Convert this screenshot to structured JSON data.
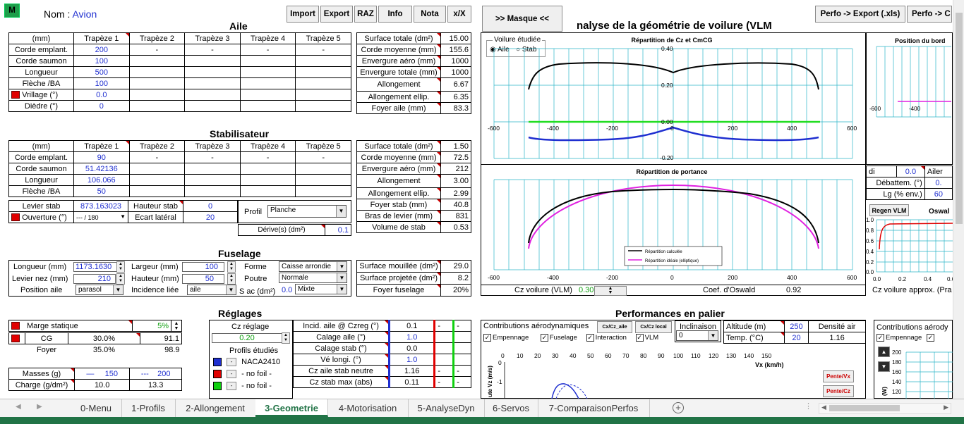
{
  "header": {
    "m_button": "M",
    "nom_label": "Nom :",
    "nom_value": "Avion",
    "buttons": [
      "Import",
      "Export",
      "RAZ",
      "Info",
      "Nota",
      "x/X"
    ],
    "masque_button": ">>     Masque     <<",
    "analysis_title": "nalyse de la géométrie de voilure (VLM",
    "perfo_export": "Perfo -> Export (.xls)",
    "perfo_c": "Perfo -> C"
  },
  "aile": {
    "title": "Aile",
    "headers": [
      "(mm)",
      "Trapèze 1",
      "Trapèze 2",
      "Trapèze 3",
      "Trapèze 4",
      "Trapèze 5"
    ],
    "rows": [
      {
        "label": "Corde emplant.",
        "values": [
          "200",
          "-",
          "-",
          "-",
          "-"
        ]
      },
      {
        "label": "Corde saumon",
        "values": [
          "100",
          "",
          "",
          "",
          ""
        ]
      },
      {
        "label": "Longueur",
        "values": [
          "500",
          "",
          "",
          "",
          ""
        ]
      },
      {
        "label": "Flèche /BA",
        "values": [
          "100",
          "",
          "",
          "",
          ""
        ]
      },
      {
        "label": "Vrillage (°)",
        "values": [
          "0.0",
          "",
          "",
          "",
          ""
        ]
      },
      {
        "label": "Dièdre (°)",
        "values": [
          "0",
          "",
          "",
          "",
          ""
        ]
      }
    ],
    "summary": [
      {
        "label": "Surface totale (dm²)",
        "value": "15.00"
      },
      {
        "label": "Corde moyenne (mm)",
        "value": "155.6"
      },
      {
        "label": "Envergure aéro (mm)",
        "value": "1000"
      },
      {
        "label": "Envergure totale (mm)",
        "value": "1000"
      },
      {
        "label": "Allongement",
        "value": "6.67"
      },
      {
        "label": "Allongement ellip.",
        "value": "6.35"
      },
      {
        "label": "Foyer aile (mm)",
        "value": "83.3"
      }
    ]
  },
  "stab": {
    "title": "Stabilisateur",
    "headers": [
      "(mm)",
      "Trapèze 1",
      "Trapèze 2",
      "Trapèze 3",
      "Trapèze 4",
      "Trapèze 5"
    ],
    "rows": [
      {
        "label": "Corde emplant.",
        "values": [
          "90",
          "-",
          "-",
          "-",
          "-"
        ]
      },
      {
        "label": "Corde saumon",
        "values": [
          "51.42136",
          "",
          "",
          "",
          ""
        ]
      },
      {
        "label": "Longueur",
        "values": [
          "106.066",
          "",
          "",
          "",
          ""
        ]
      },
      {
        "label": "Flèche /BA",
        "values": [
          "50",
          "",
          "",
          "",
          ""
        ]
      }
    ],
    "levier_label": "Levier stab",
    "levier_value": "873.163023",
    "hauteur_label": "Hauteur stab",
    "hauteur_value": "0",
    "ouverture_label": "Ouverture (°)",
    "ouverture_value": "--- / 180",
    "ecart_label": "Ecart latéral",
    "ecart_value": "20",
    "profil_label": "Profil",
    "profil_value": "Planche",
    "derive_label": "Dérive(s) (dm²)",
    "derive_value": "0.1",
    "summary": [
      {
        "label": "Surface totale (dm²)",
        "value": "1.50"
      },
      {
        "label": "Corde moyenne (mm)",
        "value": "72.5"
      },
      {
        "label": "Envergure aéro (mm)",
        "value": "212"
      },
      {
        "label": "Allongement",
        "value": "3.00"
      },
      {
        "label": "Allongement ellip.",
        "value": "2.99"
      },
      {
        "label": "Foyer stab (mm)",
        "value": "40.8"
      },
      {
        "label": "Bras de levier (mm)",
        "value": "831"
      },
      {
        "label": "Volume de stab",
        "value": "0.53"
      }
    ]
  },
  "fuselage": {
    "title": "Fuselage",
    "longueur_label": "Longueur (mm)",
    "longueur_value": "1173.1630",
    "largeur_label": "Largeur (mm)",
    "largeur_value": "100",
    "forme_label": "Forme",
    "forme_value": "Caisse arrondie",
    "levier_nez_label": "Levier nez (mm)",
    "levier_nez_value": "210",
    "hauteur_label": "Hauteur (mm)",
    "hauteur_value": "50",
    "poutre_label": "Poutre",
    "poutre_value": "Normale",
    "position_aile_label": "Position aile",
    "position_aile_value": "parasol",
    "incidence_label": "Incidence liée",
    "incidence_value": "aile",
    "sac_label": "S ac (dm²)",
    "sac_value": "0.0",
    "sac_mode": "Mixte",
    "summary": [
      {
        "label": "Surface mouillée (dm²)",
        "value": "29.0"
      },
      {
        "label": "Surface projetée (dm²)",
        "value": "8.2"
      },
      {
        "label": "Foyer fuselage",
        "value": "20%"
      }
    ]
  },
  "reglages": {
    "title": "Réglages",
    "marge_label": "Marge statique",
    "marge_value": "5%",
    "cg_label": "CG",
    "cg_pct": "30.0%",
    "cg_value": "91.1",
    "foyer_label": "Foyer",
    "foyer_pct": "35.0%",
    "foyer_value": "98.9",
    "masses_label": "Masses (g)",
    "masses_v1": "150",
    "masses_v2": "200",
    "charge_label": "Charge (g/dm²)",
    "charge_v1": "10.0",
    "charge_v2": "13.3",
    "cz_reglage_label": "Cz réglage",
    "cz_reglage_value": "0.20",
    "profils_label": "Profils étudiés",
    "profils": [
      "NACA2410",
      "- no foil -",
      "- no foil -"
    ],
    "params": [
      {
        "label": "Incid. aile @ Czreg (°)",
        "v": "0.1"
      },
      {
        "label": "Calage aile (°)",
        "v": "1.0"
      },
      {
        "label": "Calage stab (°)",
        "v": "0.0"
      },
      {
        "label": "Vé longi. (°)",
        "v": "1.0"
      },
      {
        "label": "Cz aile stab neutre",
        "v": "1.16"
      },
      {
        "label": "Cz stab max (abs)",
        "v": "0.11"
      }
    ]
  },
  "vlm": {
    "voilure_label": "Voilure étudiée",
    "aile_opt": "Aile",
    "stab_opt": "Stab",
    "chart1_title": "Répartition de Cz et CmCG",
    "chart2_title": "Répartition de portance",
    "legend_calc": "Répartition calculée",
    "legend_ideal": "Répartition idéale (elliptique)",
    "cz_voilure_label": "Cz voilure (VLM)",
    "cz_voilure_value": "0.30",
    "oswald_label": "Coef. d'Oswald",
    "oswald_value": "0.92",
    "cz_approx_label": "Cz voilure approx. (Pra",
    "x_ticks": [
      "-600",
      "-400",
      "-200",
      "0",
      "200",
      "400",
      "600"
    ],
    "y_ticks_1": [
      "0.40",
      "0.20",
      "0.00",
      "-0.20"
    ],
    "right_title": "Position du bord",
    "right_ticks": [
      "-600",
      "-400"
    ],
    "di_label": "di",
    "di_value": "0.0",
    "ailer_label": "Ailer",
    "debattem_label": "Débattem. (°)",
    "debattem_value": "0.",
    "lg_label": "Lg (% env.)",
    "lg_value": "60",
    "regen_label": "Regen VLM",
    "oswald_small": "Oswal",
    "osw_y": [
      "1.0",
      "0.8",
      "0.6",
      "0.4",
      "0.2",
      "0.0"
    ],
    "osw_x": [
      "0.0",
      "0.2",
      "0.4",
      "0.6"
    ]
  },
  "perf": {
    "title": "Performances en palier",
    "contrib_label": "Contributions aérodynamiques",
    "cx_aile": "Cx/Cz_aile",
    "cx_local": "Cx/Cz local",
    "chk_empennage": "Empennage",
    "chk_fuselage": "Fuselage",
    "chk_interaction": "Interaction",
    "chk_vlm": "VLM",
    "inclinaison_label": "Inclinaison",
    "inclinaison_value": "0",
    "altitude_label": "Altitude (m)",
    "altitude_value": "250",
    "densite_label": "Densité air",
    "densite_value": "1.16",
    "temp_label": "Temp. (°C)",
    "temp_value": "20",
    "vx_ticks": [
      "0",
      "10",
      "20",
      "30",
      "40",
      "50",
      "60",
      "70",
      "80",
      "90",
      "100",
      "110",
      "120",
      "130",
      "140",
      "150"
    ],
    "vx_label": "Vx (km/h)",
    "vz_label": "ute Vz (m/s)",
    "vz_ticks": [
      "0",
      "-1"
    ],
    "pente_vx": "Pente/Vx",
    "pente_cz": "Pente/Cz",
    "contrib2_label": "Contributions aérody",
    "right_y": [
      "200",
      "180",
      "160",
      "140",
      "120"
    ],
    "w_label": "(W)"
  },
  "tabs": [
    "0-Menu",
    "1-Profils",
    "2-Allongement",
    "3-Geometrie",
    "4-Motorisation",
    "5-AnalyseDyn",
    "6-Servos",
    "7-ComparaisonPerfos"
  ],
  "colors": {
    "accent": "#217346",
    "blue": "#1f2fd0",
    "red": "#e00000",
    "green": "#10a010"
  }
}
